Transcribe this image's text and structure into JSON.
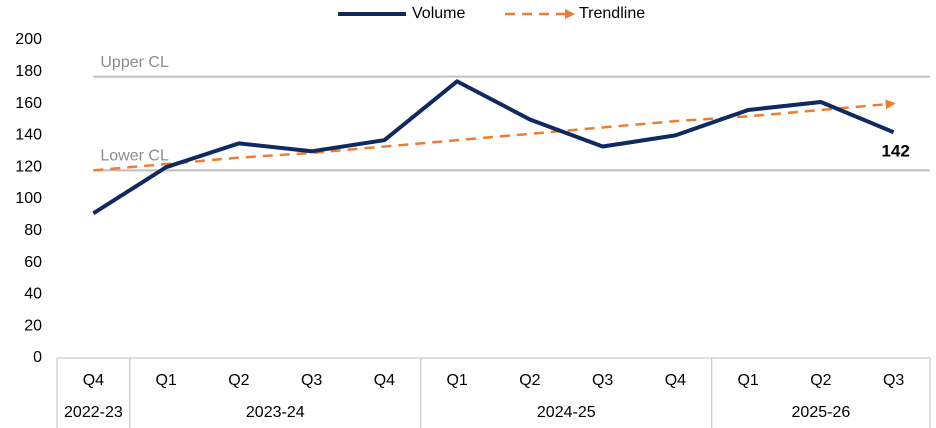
{
  "chart_data": {
    "type": "line",
    "categories": [
      "Q4",
      "Q1",
      "Q2",
      "Q3",
      "Q4",
      "Q1",
      "Q2",
      "Q3",
      "Q4",
      "Q1",
      "Q2",
      "Q3"
    ],
    "category_groups": [
      {
        "name": "2022-23",
        "count": 1
      },
      {
        "name": "2023-24",
        "count": 4
      },
      {
        "name": "2024-25",
        "count": 4
      },
      {
        "name": "2025-26",
        "count": 3
      }
    ],
    "series": [
      {
        "name": "Volume",
        "color": "#10295f",
        "style": "solid",
        "values": [
          91,
          120,
          135,
          130,
          137,
          174,
          150,
          133,
          140,
          156,
          161,
          142
        ]
      },
      {
        "name": "Trendline",
        "color": "#ed7d31",
        "style": "dashed-arrow",
        "values": [
          118,
          122,
          126,
          129,
          133,
          137,
          141,
          145,
          149,
          152,
          156,
          160
        ]
      }
    ],
    "reference_lines": [
      {
        "label": "Upper CL",
        "value": 177,
        "color": "#bfbfbf"
      },
      {
        "label": "Lower CL",
        "value": 118,
        "color": "#bfbfbf"
      }
    ],
    "label_last_point": true,
    "ylim": [
      0,
      200
    ],
    "yticks": [
      0,
      20,
      40,
      60,
      80,
      100,
      120,
      140,
      160,
      180,
      200
    ],
    "legend": "top"
  }
}
